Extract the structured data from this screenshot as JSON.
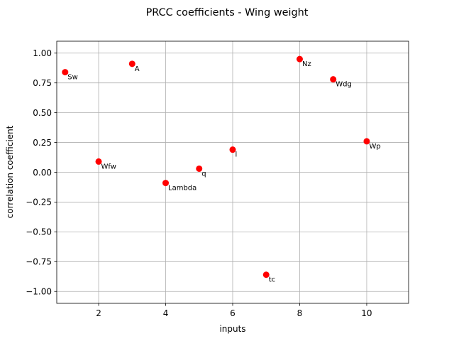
{
  "chart_data": {
    "type": "scatter",
    "title": "PRCC coefficients - Wing weight",
    "xlabel": "inputs",
    "ylabel": "correlation coefficient",
    "xlim": [
      0.75,
      11.25
    ],
    "ylim": [
      -1.1,
      1.1
    ],
    "grid": true,
    "marker_color": "#ff0000",
    "x_ticks": [
      2,
      4,
      6,
      8,
      10
    ],
    "x_tick_labels": [
      "2",
      "4",
      "6",
      "8",
      "10"
    ],
    "y_ticks": [
      1.0,
      0.75,
      0.5,
      0.25,
      0.0,
      -0.25,
      -0.5,
      -0.75,
      -1.0
    ],
    "y_tick_labels": [
      "1.00",
      "0.75",
      "0.50",
      "0.25",
      "0.00",
      "−0.25",
      "−0.50",
      "−0.75",
      "−1.00"
    ],
    "points": [
      {
        "label": "Sw",
        "x": 1,
        "y": 0.84
      },
      {
        "label": "Wfw",
        "x": 2,
        "y": 0.09
      },
      {
        "label": "A",
        "x": 3,
        "y": 0.91
      },
      {
        "label": "Lambda",
        "x": 4,
        "y": -0.09
      },
      {
        "label": "q",
        "x": 5,
        "y": 0.03
      },
      {
        "label": "l",
        "x": 6,
        "y": 0.19
      },
      {
        "label": "tc",
        "x": 7,
        "y": -0.86
      },
      {
        "label": "Nz",
        "x": 8,
        "y": 0.95
      },
      {
        "label": "Wdg",
        "x": 9,
        "y": 0.78
      },
      {
        "label": "Wp",
        "x": 10,
        "y": 0.26
      }
    ]
  }
}
